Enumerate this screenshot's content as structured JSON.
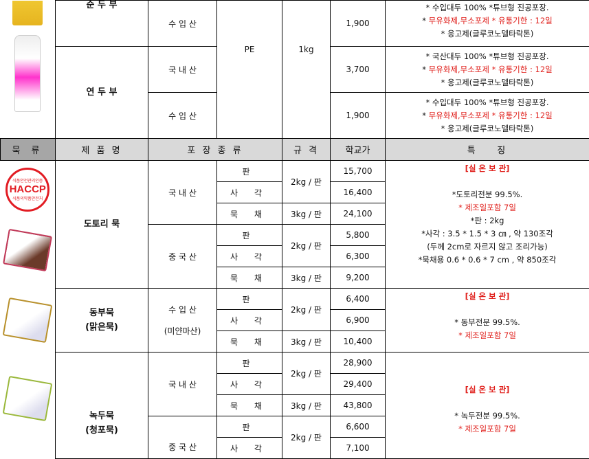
{
  "top_section": {
    "packaging": "PE",
    "spec": "1kg",
    "rows": [
      {
        "product": "순 두 부",
        "origin": "수 입 산",
        "price": "1,900",
        "features": [
          "* 수입대두 100% *튜브형 진공포장.",
          "* ",
          "무유화제,무소포제  * 유통기한 : 12일",
          "* 응고제(글루코노델타락톤)"
        ]
      },
      {
        "product": "연 두 부",
        "origin": "국 내 산",
        "price": "3,700",
        "features": [
          "* 국산대두 100% *튜브형 진공포장.",
          "* ",
          "무유화제,무소포제  * 유통기한 : 12일",
          "* 응고제(글루코노델타락톤)"
        ]
      },
      {
        "origin": "수 입 산",
        "price": "1,900",
        "features": [
          "* 수입대두 100% *튜브형 진공포장.",
          "* ",
          "무유화제,무소포제  * 유통기한 : 12일",
          "* 응고제(글루코노델타락톤)"
        ]
      }
    ]
  },
  "header": {
    "category": "묵 류",
    "product": "제 품 명",
    "packaging": "포 장 종 류",
    "spec": "규 격",
    "price": "학교가",
    "features": "특    징"
  },
  "images": {
    "haccp_text": "HACCP",
    "haccp_top": "식품안전관리인증",
    "haccp_bottom": "식품의약품안전처"
  },
  "dotori": {
    "product": "도토리 묵",
    "origins": [
      "국 내 산",
      "중 국 산"
    ],
    "rows": [
      {
        "type": "판",
        "spec": "2kg / 판",
        "price": "15,700"
      },
      {
        "type": "사 각",
        "price": "16,400"
      },
      {
        "type": "묵 채",
        "spec": "3kg / 판",
        "price": "24,100"
      },
      {
        "type": "판",
        "spec": "2kg / 판",
        "price": "5,800"
      },
      {
        "type": "사 각",
        "price": "6,300"
      },
      {
        "type": "묵 채",
        "spec": "3kg / 판",
        "price": "9,200"
      }
    ],
    "features": {
      "storage": "[실 온 보 관]",
      "lines": [
        "*도토리전분 99.5%.",
        "* 제조일포함 7일",
        "*판 : 2kg",
        "*사각 :  3.5 * 1.5 * 3 ㎝ , 약 130조각",
        "(두께 2cm로 자르지 않고 조리가능)",
        "*묵채용 0.6 * 0.6 * 7 cm , 약 850조각"
      ]
    }
  },
  "dongbu": {
    "product_line1": "동부묵",
    "product_line2": "(맑은묵)",
    "origin": "수 입 산",
    "origin_note": "(미얀마산)",
    "rows": [
      {
        "type": "판",
        "spec": "2kg / 판",
        "price": "6,400"
      },
      {
        "type": "사 각",
        "price": "6,900"
      },
      {
        "type": "묵 채",
        "spec": "3kg / 판",
        "price": "10,400"
      }
    ],
    "features": {
      "storage": "[실 온 보 관]",
      "lines": [
        "* 동부전분 99.5%.",
        "* 제조일포함 7일"
      ]
    }
  },
  "nokdu": {
    "product_line1": "녹두묵",
    "product_line2": "(청포묵)",
    "origins": [
      "국 내 산",
      "중 국 산"
    ],
    "rows": [
      {
        "type": "판",
        "spec": "2kg / 판",
        "price": "28,900"
      },
      {
        "type": "사 각",
        "price": "29,400"
      },
      {
        "type": "묵 채",
        "spec": "3kg / 판",
        "price": "43,800"
      },
      {
        "type": "판",
        "spec": "2kg / 판",
        "price": "6,600"
      },
      {
        "type": "사 각",
        "price": "7,100"
      }
    ],
    "features": {
      "storage": "[실 온 보 관]",
      "lines": [
        "* 녹두전분 99.5%.",
        "* 제조일포함 7일"
      ]
    }
  }
}
